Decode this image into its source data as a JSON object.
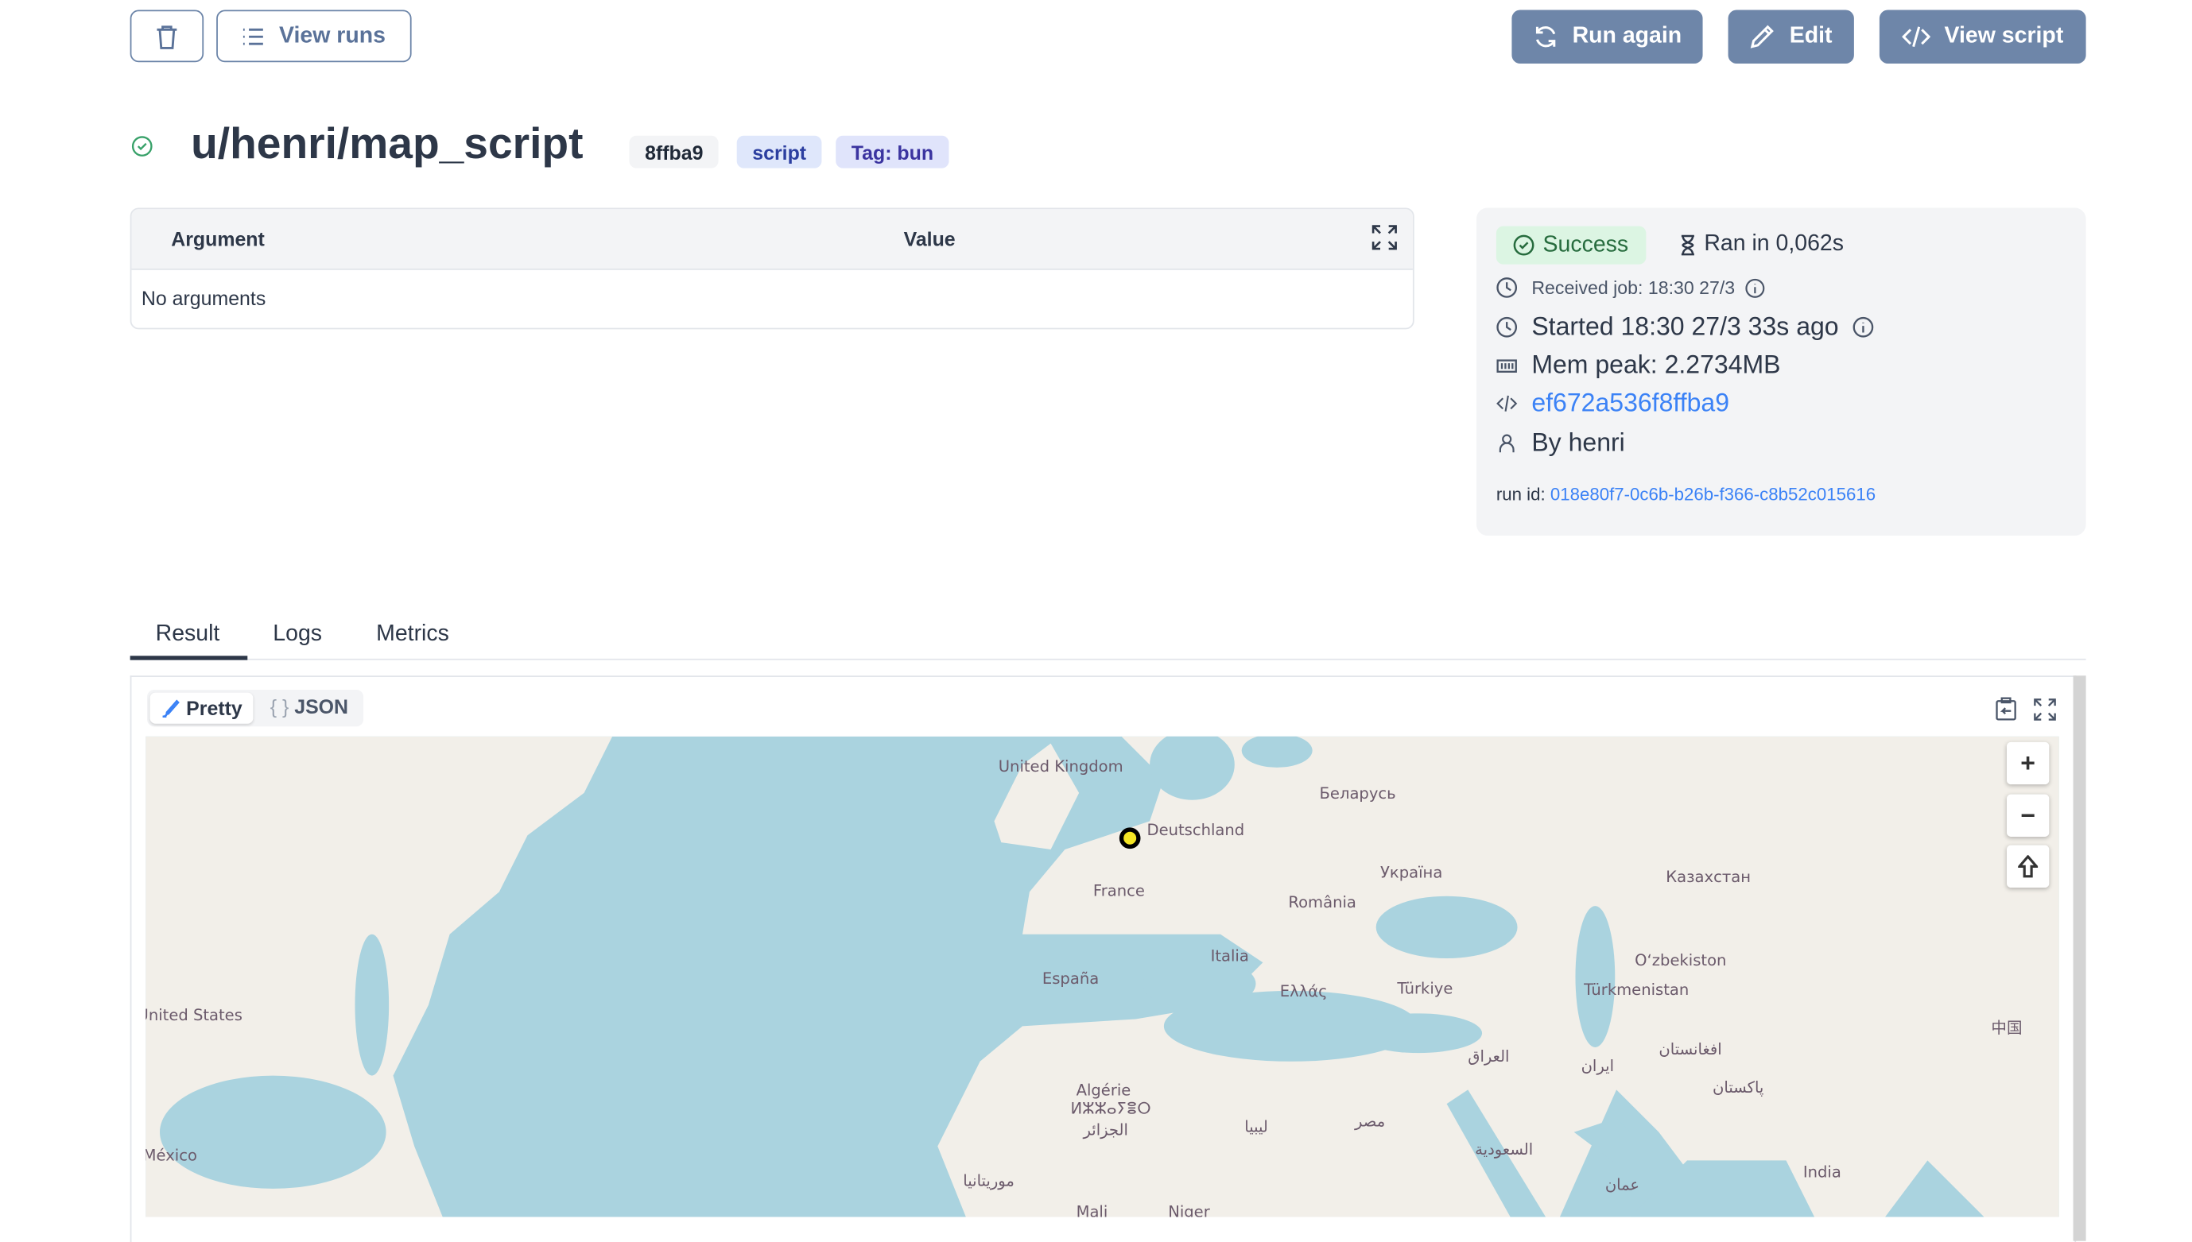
{
  "toolbar": {
    "delete_icon": "trash-icon",
    "view_runs": "View runs",
    "run_again": "Run again",
    "edit": "Edit",
    "view_script": "View script"
  },
  "header": {
    "title": "u/henri/map_script",
    "status_icon": "check-circle-icon",
    "badges": [
      "8ffba9",
      "script",
      "Tag: bun"
    ]
  },
  "arguments": {
    "col_argument": "Argument",
    "col_value": "Value",
    "empty": "No arguments"
  },
  "job": {
    "status": "Success",
    "duration": "Ran in 0,062s",
    "received": "Received job: 18:30 27/3",
    "started": "Started 18:30 27/3 33s ago",
    "mem_peak": "Mem peak: 2.2734MB",
    "script_hash": "ef672a536f8ffba9",
    "by": "By henri",
    "run_id_label": "run id:",
    "run_id": "018e80f7-0c6b-b26b-f366-c8b52c015616"
  },
  "tabs": [
    {
      "label": "Result",
      "active": true
    },
    {
      "label": "Logs",
      "active": false
    },
    {
      "label": "Metrics",
      "active": false
    }
  ],
  "result": {
    "pretty": "Pretty",
    "json": "JSON",
    "map": {
      "zoom_in": "+",
      "zoom_out": "−",
      "labels": [
        "United Kingdom",
        "Беларусь",
        "Deutschland",
        "Україна",
        "Казахстан",
        "France",
        "România",
        "Italia",
        "Oʻzbekiston",
        "España",
        "Ελλάς",
        "Türkiye",
        "Türkmenistan",
        "United States",
        "中国",
        "العراق",
        "افغانستان",
        "ایران",
        "پاکستان",
        "Algérie",
        "ⵍⵣⵣⴰⵢⴻⵔ",
        "الجزائر",
        "ليبيا",
        "مصر",
        "السعودية",
        "México",
        "India",
        "موريتانيا",
        "عمان",
        "Mali",
        "Niger"
      ],
      "marker_color": "#f5e625",
      "water_color": "#aad3df",
      "land_color": "#f2efe9"
    }
  }
}
